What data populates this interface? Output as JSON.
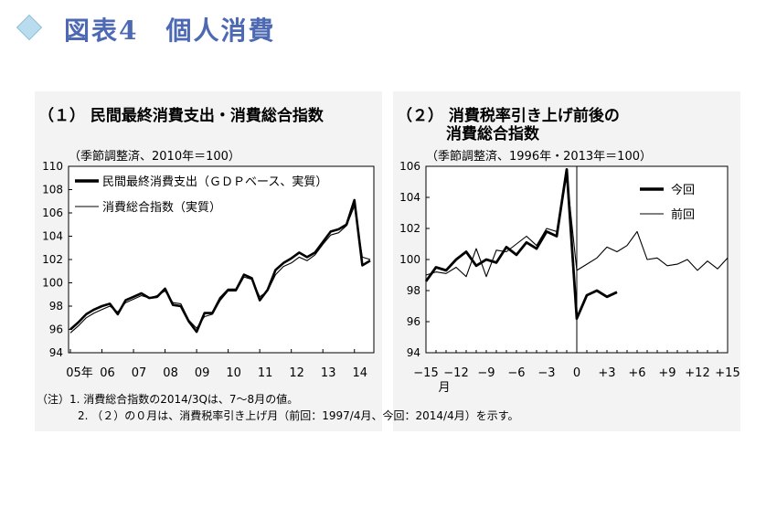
{
  "header": {
    "title": "図表4　個人消費"
  },
  "panel1": {
    "title": "（１） 民間最終消費支出・消費総合指数",
    "subtitle": "（季節調整済、2010年＝100）"
  },
  "panel2": {
    "title_line1": "（２） 消費税率引き上げ前後の",
    "title_line2": "消費総合指数",
    "subtitle": "（季節調整済、1996年・2013年＝100）"
  },
  "notes": {
    "line1": "（注）1. 消費総合指数の2014/3Qは、7～8月の値。",
    "line2": "2. （２）の０月は、消費税率引き上げ月（前回：1997/4月、今回：2014/4月）を示す。"
  },
  "chart_data": [
    {
      "type": "line",
      "ylim": [
        94,
        110
      ],
      "yticks": [
        "94",
        "96",
        "98",
        "100",
        "102",
        "104",
        "106",
        "108",
        "110"
      ],
      "xtick_labels": [
        "05年",
        "06",
        "07",
        "08",
        "09",
        "10",
        "11",
        "12",
        "13",
        "14"
      ],
      "x_period": "quarterly, 2005Q1–2014Q3",
      "series": [
        {
          "name": "民間最終消費支出（ＧＤＰベース、実質）",
          "style": "thick",
          "values": [
            96.0,
            96.6,
            97.3,
            97.7,
            98.0,
            98.2,
            97.3,
            98.5,
            98.8,
            99.1,
            98.7,
            98.8,
            99.5,
            98.1,
            98.0,
            96.7,
            95.8,
            97.4,
            97.4,
            98.7,
            99.4,
            99.4,
            100.7,
            100.4,
            98.5,
            99.4,
            101.1,
            101.7,
            102.1,
            102.6,
            102.2,
            102.6,
            103.5,
            104.4,
            104.6,
            105.0,
            107.1,
            101.5,
            101.9
          ]
        },
        {
          "name": "消費総合指数（実質）",
          "style": "thin",
          "values": [
            95.7,
            96.3,
            97.0,
            97.4,
            97.7,
            98.0,
            97.5,
            98.3,
            98.6,
            98.9,
            98.7,
            98.9,
            99.3,
            98.3,
            98.2,
            96.8,
            96.1,
            97.1,
            97.3,
            98.5,
            99.3,
            99.3,
            100.5,
            100.3,
            98.8,
            99.3,
            100.7,
            101.4,
            101.7,
            102.2,
            101.9,
            102.4,
            103.3,
            104.1,
            104.3,
            104.9,
            106.6,
            102.2,
            102.0
          ]
        }
      ]
    },
    {
      "type": "line",
      "ylim": [
        94,
        106
      ],
      "yticks": [
        "94",
        "96",
        "98",
        "100",
        "102",
        "104",
        "106"
      ],
      "x_range": [
        -15,
        15
      ],
      "xtick_labels": [
        "−15",
        "−12",
        "−9",
        "−6",
        "−3",
        "0",
        "+3",
        "+6",
        "+9",
        "+12",
        "+15"
      ],
      "x_unit": "月",
      "series": [
        {
          "name": "今回",
          "style": "thick",
          "x": [
            -15,
            -14,
            -13,
            -12,
            -11,
            -10,
            -9,
            -8,
            -7,
            -6,
            -5,
            -4,
            -3,
            -2,
            -1,
            0,
            1,
            2,
            3,
            4
          ],
          "values": [
            98.6,
            99.5,
            99.3,
            100.0,
            100.5,
            99.6,
            100.0,
            99.8,
            100.8,
            100.3,
            101.1,
            100.7,
            101.8,
            101.5,
            105.8,
            96.2,
            97.7,
            98.0,
            97.6,
            97.9
          ]
        },
        {
          "name": "前回",
          "style": "thin",
          "x": [
            -15,
            -14,
            -13,
            -12,
            -11,
            -10,
            -9,
            -8,
            -7,
            -6,
            -5,
            -4,
            -3,
            -2,
            -1,
            0,
            1,
            2,
            3,
            4,
            5,
            6,
            7,
            8,
            9,
            10,
            11,
            12,
            13,
            14,
            15
          ],
          "values": [
            99.0,
            99.2,
            99.1,
            99.5,
            98.9,
            100.7,
            98.9,
            100.6,
            100.5,
            101.0,
            101.5,
            100.9,
            102.0,
            101.8,
            105.4,
            99.3,
            99.7,
            100.1,
            100.8,
            100.5,
            100.9,
            101.8,
            100.0,
            100.1,
            99.6,
            99.7,
            100.0,
            99.3,
            99.9,
            99.4,
            100.1
          ]
        }
      ]
    }
  ]
}
